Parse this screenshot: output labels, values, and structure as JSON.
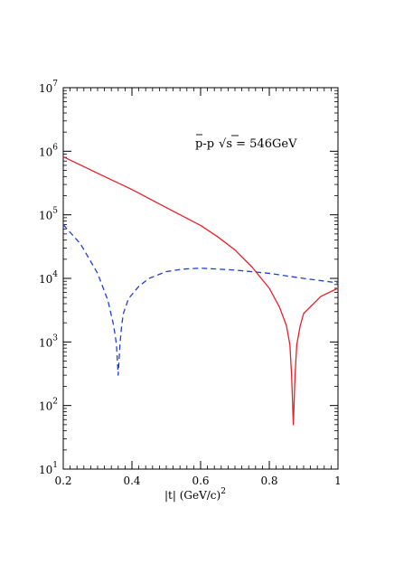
{
  "chart_data": {
    "type": "line",
    "xlabel": "|t|  (GeV/c)",
    "xlabel_superscript": "2",
    "annotation": {
      "prefix": "p",
      "suffix": "-p",
      "sqrt_symbol": "√",
      "variable": "s",
      "value": " = 546GeV"
    },
    "xlim": [
      0.2,
      1.0
    ],
    "ylim": [
      10,
      10000000
    ],
    "yscale": "log",
    "x_ticks": [
      0.2,
      0.4,
      0.6,
      0.8,
      1.0
    ],
    "x_tick_labels": [
      "0.2",
      "0.4",
      "0.6",
      "0.8",
      "1"
    ],
    "y_ticks": [
      10,
      100,
      1000,
      10000,
      100000,
      1000000,
      10000000
    ],
    "y_tick_base": "10",
    "y_tick_exponents": [
      "1",
      "2",
      "3",
      "4",
      "5",
      "6",
      "7"
    ],
    "grid": false,
    "series": [
      {
        "style": "solid",
        "color": "#e8202a",
        "x": [
          0.2,
          0.3,
          0.4,
          0.5,
          0.6,
          0.65,
          0.7,
          0.75,
          0.8,
          0.83,
          0.85,
          0.86,
          0.865,
          0.87,
          0.875,
          0.88,
          0.89,
          0.9,
          0.95,
          1.0
        ],
        "y": [
          820000,
          450000,
          250000,
          130000,
          68000,
          45000,
          28000,
          15000,
          7000,
          3500,
          1800,
          900,
          300,
          50,
          300,
          900,
          1800,
          2800,
          5200,
          7000
        ]
      },
      {
        "style": "dashed",
        "color": "#1f3fd6",
        "x": [
          0.2,
          0.25,
          0.3,
          0.33,
          0.345,
          0.35,
          0.355,
          0.36,
          0.365,
          0.37,
          0.375,
          0.39,
          0.42,
          0.45,
          0.5,
          0.55,
          0.6,
          0.7,
          0.8,
          0.9,
          1.0
        ],
        "y": [
          70000,
          35000,
          12000,
          4500,
          2000,
          1400,
          900,
          300,
          900,
          1800,
          2800,
          4800,
          7500,
          10000,
          12800,
          14000,
          14500,
          13500,
          12000,
          10000,
          8500
        ]
      }
    ]
  }
}
